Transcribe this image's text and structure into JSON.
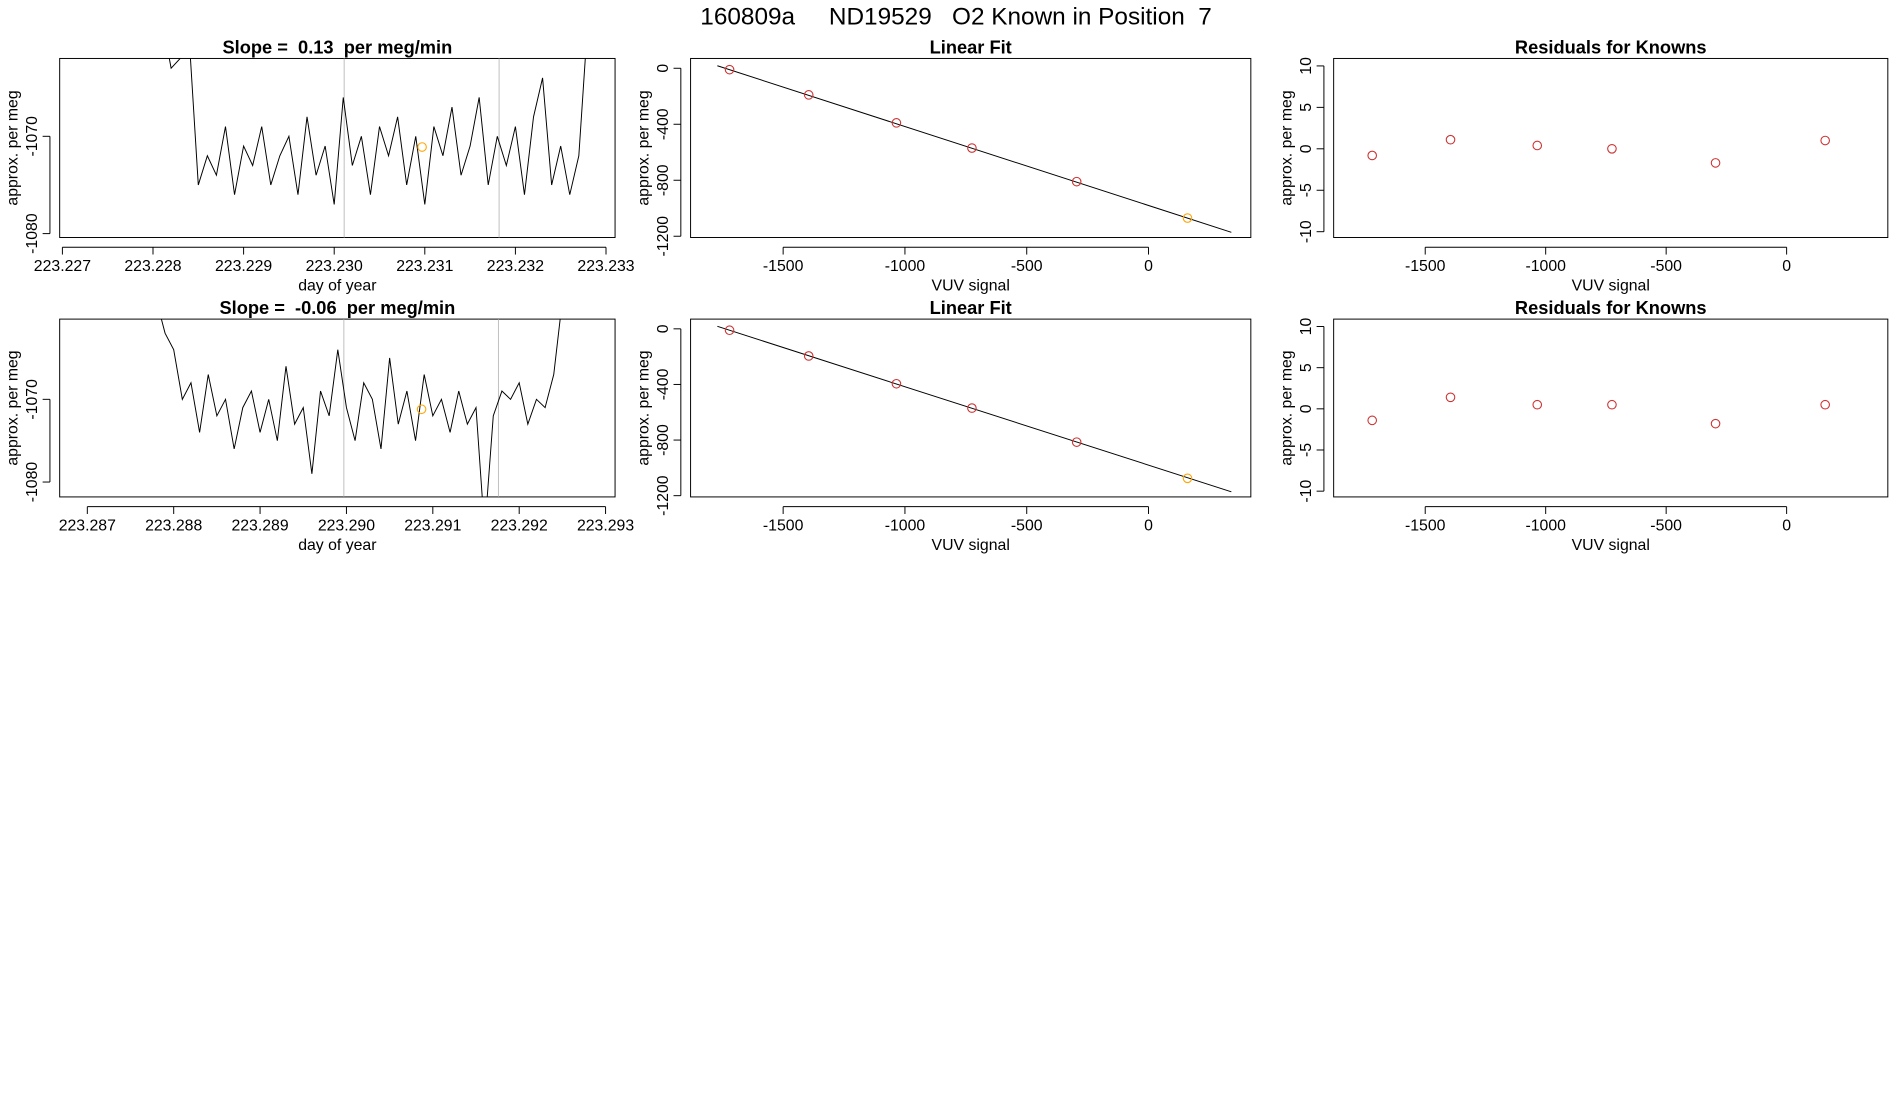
{
  "title": "160809a     ND19529   O2 Known in Position  7",
  "chart_data": [
    {
      "type": "line",
      "title": "Slope =  0.13  per meg/min",
      "xlabel": "day of year",
      "ylabel": "approx. per meg",
      "xlim": [
        223.22697,
        223.2331
      ],
      "ylim": [
        -1080.4,
        -1062
      ],
      "xticks": [
        223.227,
        223.228,
        223.229,
        {
          "value": 223.23,
          "label": "223.230"
        },
        223.231,
        223.232,
        223.233
      ],
      "yticks": [
        -1080,
        -1070
      ],
      "x": [
        223.2281,
        223.2282,
        223.2283,
        223.2284,
        223.2285,
        223.2286,
        223.2287,
        223.2288,
        223.2289,
        223.229,
        223.2291,
        223.2292,
        223.2293,
        223.2294,
        223.2295,
        223.2296,
        223.2297,
        223.2298,
        223.2299,
        223.23,
        223.2301,
        223.2302,
        223.2303,
        223.2304,
        223.2305,
        223.2306,
        223.2307,
        223.2308,
        223.2309,
        223.231,
        223.2311,
        223.2312,
        223.2313,
        223.2314,
        223.2315,
        223.2316,
        223.2317,
        223.2318,
        223.2319,
        223.232,
        223.2321,
        223.2322,
        223.2323,
        223.2324,
        223.2325,
        223.2326,
        223.2327,
        223.2328
      ],
      "values": [
        -1058,
        -1063,
        -1062,
        -1060,
        -1075,
        -1072,
        -1074,
        -1069,
        -1076,
        -1071,
        -1073,
        -1069,
        -1075,
        -1072,
        -1070,
        -1076,
        -1068,
        -1074,
        -1071,
        -1077,
        -1066,
        -1073,
        -1070,
        -1076,
        -1069,
        -1072,
        -1068,
        -1075,
        -1070,
        -1077,
        -1069,
        -1072,
        -1067,
        -1074,
        -1071,
        -1066,
        -1075,
        -1070,
        -1073,
        -1069,
        -1076,
        -1068,
        -1064,
        -1075,
        -1071,
        -1076,
        -1072,
        -1058
      ],
      "color": "#000000",
      "vlines": [
        223.23011,
        223.23182
      ],
      "vline_color": "#bebebe",
      "marker": {
        "x": 223.23097,
        "value": -1071.1,
        "color": "#ffa500"
      }
    },
    {
      "type": "scatter",
      "title": "Linear Fit",
      "xlabel": "VUV signal",
      "ylabel": "approx. per meg",
      "xlim": [
        -1880,
        420
      ],
      "ylim": [
        -1209,
        70
      ],
      "xticks": [
        -1500,
        -1000,
        -500,
        0
      ],
      "yticks": [
        -1200,
        -800,
        -400,
        0
      ],
      "x": [
        -1720,
        -1395,
        -1035,
        -725,
        -295,
        160
      ],
      "values": [
        -10,
        -190,
        -390,
        -570,
        -810,
        -1070
      ],
      "colors": [
        "#cd3333",
        "#cd3333",
        "#cd3333",
        "#cd3333",
        "#cd3333",
        "#ffa500"
      ],
      "fit": {
        "x": [
          -1770,
          340
        ],
        "values": [
          18,
          -1172
        ],
        "color": "#000000"
      }
    },
    {
      "type": "scatter",
      "title": "Residuals for Knowns",
      "xlabel": "VUV signal",
      "ylabel": "approx. per meg",
      "xlim": [
        -1880,
        420
      ],
      "ylim": [
        -10.7,
        10.9
      ],
      "xticks": [
        -1500,
        -1000,
        -500,
        0
      ],
      "yticks": [
        -10,
        -5,
        0,
        5,
        10
      ],
      "x": [
        -1720,
        -1395,
        -1035,
        -725,
        -295,
        160
      ],
      "values": [
        -0.8,
        1.1,
        0.4,
        0.0,
        -1.7,
        1.0
      ],
      "colors": [
        "#cd3333",
        "#cd3333",
        "#cd3333",
        "#cd3333",
        "#cd3333",
        "#cd3333"
      ]
    },
    {
      "type": "line",
      "title": "Slope =  -0.06  per meg/min",
      "xlabel": "day of year",
      "ylabel": "approx. per meg",
      "xlim": [
        223.28668,
        223.29311
      ],
      "ylim": [
        -1081.8,
        -1060.3
      ],
      "xticks": [
        223.287,
        223.288,
        223.289,
        {
          "value": 223.29,
          "label": "223.290"
        },
        223.291,
        223.292,
        223.293
      ],
      "yticks": [
        -1080,
        -1070
      ],
      "x": [
        223.2878,
        223.2879,
        223.288,
        223.2881,
        223.2882,
        223.2883,
        223.2884,
        223.2885,
        223.2886,
        223.2887,
        223.2888,
        223.2889,
        223.289,
        223.2891,
        223.2892,
        223.2893,
        223.2894,
        223.2895,
        223.2896,
        223.2897,
        223.2898,
        223.2899,
        223.29,
        223.2901,
        223.2902,
        223.2903,
        223.2904,
        223.2905,
        223.2906,
        223.2907,
        223.2908,
        223.2909,
        223.291,
        223.2911,
        223.2912,
        223.2913,
        223.2914,
        223.2915,
        223.2916,
        223.2917,
        223.2918,
        223.2919,
        223.292,
        223.2921,
        223.2922,
        223.2923,
        223.2924,
        223.2925
      ],
      "values": [
        -1058,
        -1062,
        -1064,
        -1070,
        -1068,
        -1074,
        -1067,
        -1072,
        -1070,
        -1076,
        -1071,
        -1069,
        -1074,
        -1070,
        -1075,
        -1066,
        -1073,
        -1071,
        -1079,
        -1069,
        -1072,
        -1064,
        -1071,
        -1075,
        -1068,
        -1070,
        -1076,
        -1065,
        -1073,
        -1069,
        -1075,
        -1067,
        -1072,
        -1070,
        -1074,
        -1069,
        -1073,
        -1071,
        -1086,
        -1072,
        -1069,
        -1070,
        -1068,
        -1073,
        -1070,
        -1071,
        -1067,
        -1058
      ],
      "color": "#000000",
      "vlines": [
        223.28997,
        223.29176
      ],
      "vline_color": "#bebebe",
      "marker": {
        "x": 223.29087,
        "value": -1071.2,
        "color": "#ffa500"
      }
    },
    {
      "type": "scatter",
      "title": "Linear Fit",
      "xlabel": "VUV signal",
      "ylabel": "approx. per meg",
      "xlim": [
        -1880,
        420
      ],
      "ylim": [
        -1209,
        70
      ],
      "xticks": [
        -1500,
        -1000,
        -500,
        0
      ],
      "yticks": [
        -1200,
        -800,
        -400,
        0
      ],
      "x": [
        -1720,
        -1395,
        -1035,
        -725,
        -295,
        160
      ],
      "values": [
        -10,
        -195,
        -395,
        -570,
        -815,
        -1075
      ],
      "colors": [
        "#cd3333",
        "#cd3333",
        "#cd3333",
        "#cd3333",
        "#cd3333",
        "#ffa500"
      ],
      "fit": {
        "x": [
          -1770,
          340
        ],
        "values": [
          18,
          -1172
        ],
        "color": "#000000"
      }
    },
    {
      "type": "scatter",
      "title": "Residuals for Knowns",
      "xlabel": "VUV signal",
      "ylabel": "approx. per meg",
      "xlim": [
        -1880,
        420
      ],
      "ylim": [
        -10.7,
        10.9
      ],
      "xticks": [
        -1500,
        -1000,
        -500,
        0
      ],
      "yticks": [
        -10,
        -5,
        0,
        5,
        10
      ],
      "x": [
        -1720,
        -1395,
        -1035,
        -725,
        -295,
        160
      ],
      "values": [
        -1.4,
        1.4,
        0.5,
        0.5,
        -1.8,
        0.5
      ],
      "colors": [
        "#cd3333",
        "#cd3333",
        "#cd3333",
        "#cd3333",
        "#cd3333",
        "#cd3333"
      ]
    }
  ]
}
